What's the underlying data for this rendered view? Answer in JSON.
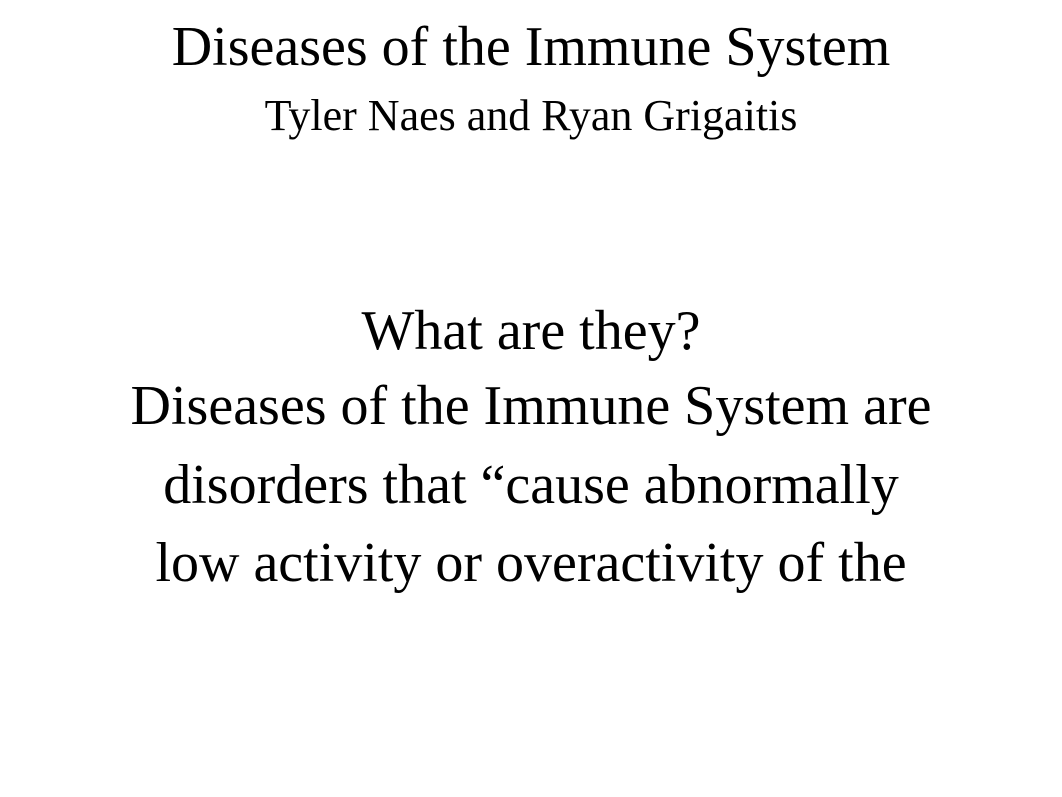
{
  "document": {
    "title": "Diseases of the Immune System",
    "authors": "Tyler Naes and Ryan Grigaitis",
    "section_heading": "What are they?",
    "body_paragraph": "Diseases of the Immune System are disorders that “cause abnormally low activity or overactivity of the",
    "background_color": "#ffffff",
    "text_color": "#000000",
    "font_family": "Times New Roman",
    "title_fontsize": 56,
    "authors_fontsize": 44,
    "heading_fontsize": 56,
    "body_fontsize": 56
  }
}
